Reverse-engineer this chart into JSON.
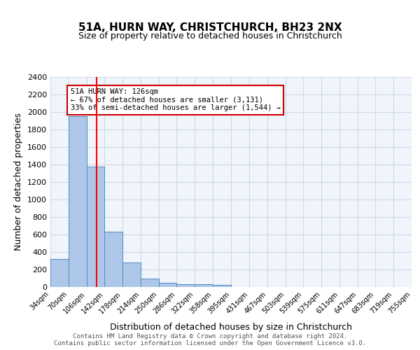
{
  "title1": "51A, HURN WAY, CHRISTCHURCH, BH23 2NX",
  "title2": "Size of property relative to detached houses in Christchurch",
  "xlabel": "Distribution of detached houses by size in Christchurch",
  "ylabel": "Number of detached properties",
  "bin_labels": [
    "34sqm",
    "70sqm",
    "106sqm",
    "142sqm",
    "178sqm",
    "214sqm",
    "250sqm",
    "286sqm",
    "322sqm",
    "358sqm",
    "395sqm",
    "431sqm",
    "467sqm",
    "503sqm",
    "539sqm",
    "575sqm",
    "611sqm",
    "647sqm",
    "683sqm",
    "719sqm",
    "755sqm"
  ],
  "bin_edges": [
    34,
    70,
    106,
    142,
    178,
    214,
    250,
    286,
    322,
    358,
    395,
    431,
    467,
    503,
    539,
    575,
    611,
    647,
    683,
    719,
    755
  ],
  "bar_heights": [
    320,
    1950,
    1380,
    630,
    280,
    95,
    48,
    30,
    30,
    22,
    0,
    0,
    0,
    0,
    0,
    0,
    0,
    0,
    0,
    0
  ],
  "bar_color": "#aec6e8",
  "bar_edgecolor": "#4a90c4",
  "grid_color": "#d0d8e8",
  "background_color": "#f0f4fb",
  "ylim": [
    0,
    2400
  ],
  "yticks": [
    0,
    200,
    400,
    600,
    800,
    1000,
    1200,
    1400,
    1600,
    1800,
    2000,
    2200,
    2400
  ],
  "red_line_x": 126,
  "annotation_text": "51A HURN WAY: 126sqm\n← 67% of detached houses are smaller (3,131)\n33% of semi-detached houses are larger (1,544) →",
  "annotation_box_color": "#ffffff",
  "annotation_box_edgecolor": "#cc0000",
  "footer_text": "Contains HM Land Registry data © Crown copyright and database right 2024.\nContains public sector information licensed under the Open Government Licence v3.0.",
  "property_size_sqm": 126
}
